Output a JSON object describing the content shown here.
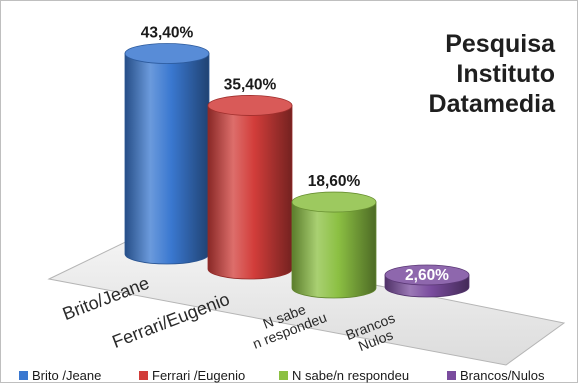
{
  "chart_data": {
    "type": "bar",
    "title_lines": [
      "Pesquisa",
      "Instituto",
      "Datamedia"
    ],
    "categories": [
      "Brito/Jeane",
      "Ferrari/Eugenio",
      "N sabe/n respondeu",
      "Brancos/Nulos"
    ],
    "axis_category_labels": [
      [
        "Brito/Jeane"
      ],
      [
        "Ferrari/Eugenio"
      ],
      [
        "N sabe",
        "n respondeu"
      ],
      [
        "Brancos",
        "Nulos"
      ]
    ],
    "legend": [
      "Brito /Jeane",
      "Ferrari /Eugenio",
      "N sabe/n respondeu",
      "Brancos/Nulos"
    ],
    "values": [
      43.4,
      35.4,
      18.6,
      2.6
    ],
    "value_labels": [
      "43,40%",
      "35,40%",
      "18,60%",
      "2,60%"
    ],
    "colors": [
      "#3a78d0",
      "#d23d3a",
      "#8cc043",
      "#7a4c9e"
    ],
    "grid": false,
    "legend_position": "bottom"
  }
}
